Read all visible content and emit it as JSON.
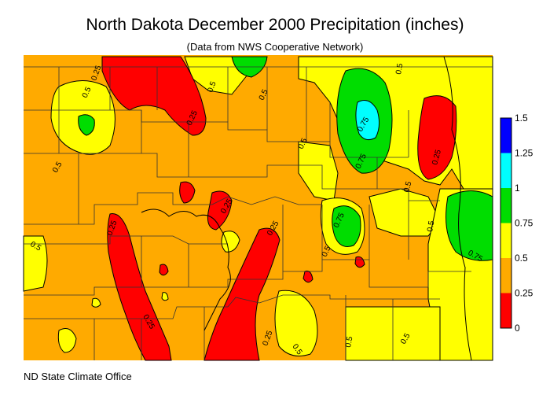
{
  "title": "North Dakota December 2000 Precipitation (inches)",
  "subtitle": "(Data from NWS Cooperative Network)",
  "credit": "ND State Climate Office",
  "legend": {
    "bins": [
      {
        "from": 0,
        "to": 0.25,
        "color": "#ff0000"
      },
      {
        "from": 0.25,
        "to": 0.5,
        "color": "#ffaa00"
      },
      {
        "from": 0.5,
        "to": 0.75,
        "color": "#ffff00"
      },
      {
        "from": 0.75,
        "to": 1,
        "color": "#00dd00"
      },
      {
        "from": 1,
        "to": 1.25,
        "color": "#00ffff"
      },
      {
        "from": 1.25,
        "to": 1.5,
        "color": "#0000ff"
      }
    ],
    "labels": [
      "0",
      "0.25",
      "0.5",
      "0.75",
      "1",
      "1.25",
      "1.5"
    ]
  },
  "contour_labels": [
    "0.25",
    "0.5",
    "0.75",
    "1"
  ]
}
